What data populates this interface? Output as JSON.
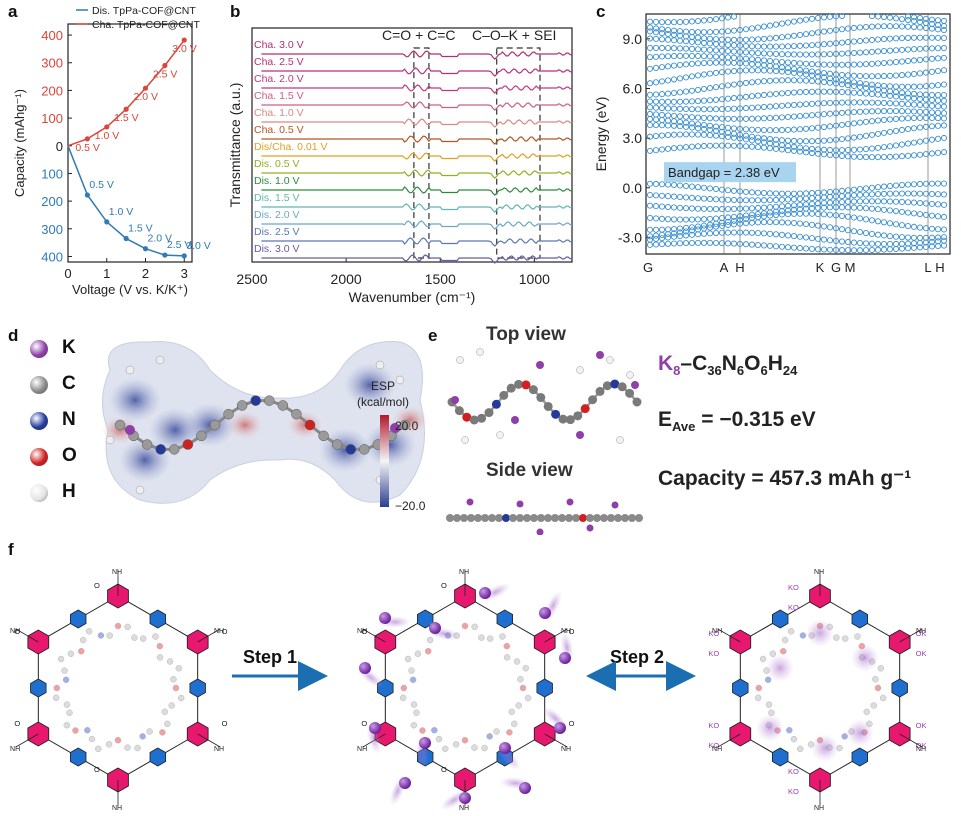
{
  "labels": {
    "a": "a",
    "b": "b",
    "c": "c",
    "d": "d",
    "e": "e",
    "f": "f"
  },
  "colors": {
    "dis": "#2e7bb5",
    "cha": "#d9463a",
    "k": "#8e3fa8",
    "c": "#8a8a8a",
    "n": "#243a9a",
    "o": "#d02020",
    "h": "#e5e5e5",
    "hex": "#e8186e",
    "benz": "#1f6fd0",
    "arrow": "#1b6fb0",
    "band": "#3a8fd0"
  },
  "panel_a": {
    "chart_data": {
      "type": "line",
      "xlabel": "Voltage (V vs. K/K⁺)",
      "ylabel": "Capacity (mAhg⁻¹)",
      "xlim": [
        0,
        3.2
      ],
      "ylim": [
        -420,
        440
      ],
      "xticks": [
        "0",
        "1",
        "2",
        "3"
      ],
      "yticks": [
        "400",
        "300",
        "200",
        "100",
        "0",
        "100",
        "200",
        "300",
        "400"
      ],
      "series": [
        {
          "name": "Dis. TpPa-COF@CNT",
          "x": [
            0,
            0.5,
            1.0,
            1.5,
            2.0,
            2.5,
            3.0
          ],
          "values": [
            0,
            -178,
            -275,
            -335,
            -372,
            -395,
            -398
          ],
          "labels": [
            "",
            "0.5 V",
            "1.0 V",
            "1.5 V",
            "2.0 V",
            "2.5 V",
            "3.0 V"
          ]
        },
        {
          "name": "Cha. TpPa-COF@CNT",
          "x": [
            0,
            0.5,
            1.0,
            1.5,
            2.0,
            2.5,
            3.0
          ],
          "values": [
            0,
            25,
            68,
            132,
            208,
            290,
            382
          ],
          "labels": [
            "",
            "0.5 V",
            "1.0 V",
            "1.5 V",
            "2.0 V",
            "2.5 V",
            "3.0 V"
          ]
        }
      ]
    }
  },
  "panel_b": {
    "chart_data": {
      "type": "line",
      "title": "",
      "xlabel": "Wavenumber (cm⁻¹)",
      "ylabel": "Transmittance (a.u.)",
      "xlim": [
        2500,
        800
      ],
      "xticks": [
        "2500",
        "2000",
        "1500",
        "1000"
      ],
      "annotations": [
        "C=O + C=C",
        "C–O–K + SEI"
      ],
      "series": [
        {
          "name": "Cha. 3.0 V",
          "color": "#b03070"
        },
        {
          "name": "Cha. 2.5 V",
          "color": "#b83078"
        },
        {
          "name": "Cha. 2.0 V",
          "color": "#c03880"
        },
        {
          "name": "Cha. 1.5 V",
          "color": "#cc6080"
        },
        {
          "name": "Cha. 1.0 V",
          "color": "#d88a80"
        },
        {
          "name": "Cha. 0.5 V",
          "color": "#b05820"
        },
        {
          "name": "Dis/Cha. 0.01 V",
          "color": "#e0a020"
        },
        {
          "name": "Dis. 0.5 V",
          "color": "#90b020"
        },
        {
          "name": "Dis. 1.0 V",
          "color": "#2e8a3a"
        },
        {
          "name": "Dis. 1.5 V",
          "color": "#60b8b0"
        },
        {
          "name": "Dis. 2.0 V",
          "color": "#6aa8c8"
        },
        {
          "name": "Dis. 2.5 V",
          "color": "#5a78b8"
        },
        {
          "name": "Dis. 3.0 V",
          "color": "#6a5aa8"
        }
      ]
    }
  },
  "panel_c": {
    "chart_data": {
      "type": "scatter",
      "ylabel": "Energy (eV)",
      "ylim": [
        -4.0,
        10.5
      ],
      "yticks": [
        "9.0",
        "6.0",
        "3.0",
        "0.0",
        "-3.0"
      ],
      "xticks": [
        "G",
        "A",
        "H",
        "K",
        "G",
        "M",
        "L",
        "H"
      ],
      "annotation": "Bandgap = 2.38 eV",
      "bandgap": 2.38
    }
  },
  "panel_d": {
    "legend": [
      {
        "symbol": "K",
        "color": "#8e3fa8"
      },
      {
        "symbol": "C",
        "color": "#8a8a8a"
      },
      {
        "symbol": "N",
        "color": "#243a9a"
      },
      {
        "symbol": "O",
        "color": "#d02020"
      },
      {
        "symbol": "H",
        "color": "#e5e5e5"
      }
    ],
    "colorbar": {
      "title": "ESP",
      "unit": "(kcal/mol)",
      "max": "20.0",
      "min": "−20.0"
    }
  },
  "panel_e": {
    "top_view": "Top view",
    "side_view": "Side view",
    "formula": {
      "k": "K",
      "k_sub": "8",
      "rest": "–C",
      "c_sub": "36",
      "n": "N",
      "n_sub": "6",
      "o": "O",
      "o_sub": "6",
      "h": "H",
      "h_sub": "24"
    },
    "eave": {
      "e": "E",
      "sub": "Ave",
      "rest": " = −0.315 eV"
    },
    "capacity": "Capacity = 457.3 mAh g⁻¹"
  },
  "panel_f": {
    "step1": "Step 1",
    "step2": "Step 2",
    "nh": "NH",
    "ok": "OK",
    "ko": "KO"
  }
}
